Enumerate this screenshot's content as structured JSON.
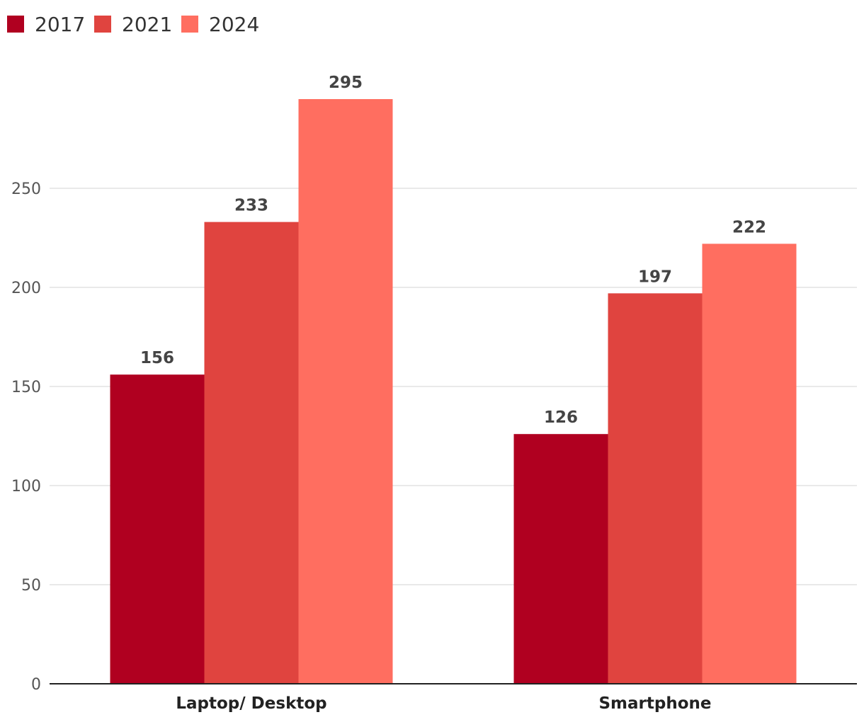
{
  "chart_data": {
    "type": "bar",
    "categories": [
      "Laptop/ Desktop",
      "Smartphone"
    ],
    "series": [
      {
        "name": "2017",
        "color": "#b00020",
        "values": [
          156,
          126
        ]
      },
      {
        "name": "2021",
        "color": "#e0443f",
        "values": [
          233,
          197
        ]
      },
      {
        "name": "2024",
        "color": "#ff6e60",
        "values": [
          295,
          222
        ]
      }
    ],
    "yticks": [
      0,
      50,
      100,
      150,
      200,
      250
    ],
    "ylim": [
      0,
      320
    ],
    "legend_position": "top-left",
    "grid": true,
    "title": "",
    "xlabel": "",
    "ylabel": ""
  }
}
